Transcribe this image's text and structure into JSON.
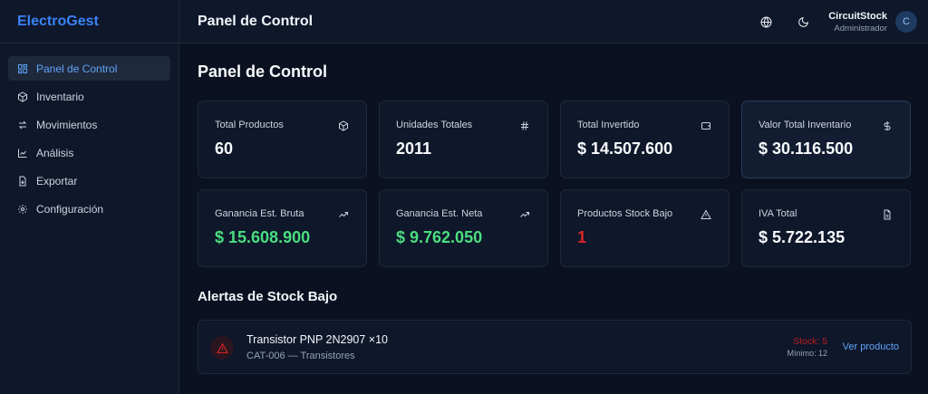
{
  "brand": "ElectroGest",
  "sidebar": {
    "items": [
      {
        "label": "Panel de Control",
        "icon": "dashboard-icon",
        "active": true
      },
      {
        "label": "Inventario",
        "icon": "box-icon"
      },
      {
        "label": "Movimientos",
        "icon": "arrows-icon"
      },
      {
        "label": "Análisis",
        "icon": "chart-line-icon"
      },
      {
        "label": "Exportar",
        "icon": "file-export-icon"
      },
      {
        "label": "Configuración",
        "icon": "gear-icon"
      }
    ]
  },
  "header": {
    "title": "Panel de Control",
    "user": {
      "name": "CircuitStock",
      "role": "Administrador",
      "initial": "C"
    }
  },
  "main": {
    "title": "Panel de Control",
    "cards": [
      {
        "label": "Total Productos",
        "value": "60",
        "icon": "box-icon"
      },
      {
        "label": "Unidades Totales",
        "value": "2011",
        "icon": "hash-icon"
      },
      {
        "label": "Total Invertido",
        "value": "$ 14.507.600",
        "icon": "wallet-icon"
      },
      {
        "label": "Valor Total Inventario",
        "value": "$ 30.116.500",
        "icon": "dollar-icon"
      },
      {
        "label": "Ganancia Est. Bruta",
        "value": "$ 15.608.900",
        "icon": "trending-up-icon"
      },
      {
        "label": "Ganancia Est. Neta",
        "value": "$ 9.762.050",
        "icon": "trending-up-icon"
      },
      {
        "label": "Productos Stock Bajo",
        "value": "1",
        "icon": "warning-icon"
      },
      {
        "label": "IVA Total",
        "value": "$ 5.722.135",
        "icon": "document-icon"
      }
    ],
    "alerts_title": "Alertas de Stock Bajo",
    "alerts": [
      {
        "name": "Transistor PNP 2N2907 ×10",
        "sub": "CAT-006 — Transistores",
        "stock": "Stock: 5",
        "min": "Mínimo: 12",
        "link": "Ver producto"
      }
    ]
  },
  "colors": {
    "accent": "#3b82f6",
    "positive": "#4ade80",
    "danger": "#dc2626",
    "background": "#0b1120",
    "panel": "#0f172a"
  }
}
